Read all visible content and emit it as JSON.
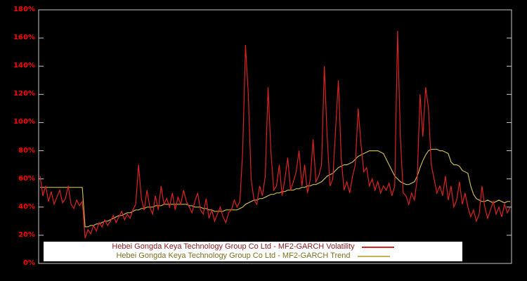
{
  "axis": {
    "label_color": "#ff0000",
    "border_color": "#c8c8c8",
    "background": "#000000"
  },
  "chart_data": {
    "type": "line",
    "title": "",
    "xlabel": "",
    "ylabel": "",
    "ylim": [
      0,
      180
    ],
    "y_ticks": [
      "0%",
      "20%",
      "40%",
      "60%",
      "80%",
      "100%",
      "120%",
      "140%",
      "160%",
      "180%"
    ],
    "grid": false,
    "legend_position": "bottom-center",
    "x_count": 168,
    "series": [
      {
        "name": "Hebei Gongda Keya Technology Group Co Ltd - MF2-GARCH Volatility",
        "color": "#dd2222",
        "legend_text_color": "#8b1a1a",
        "values": [
          62,
          48,
          55,
          44,
          51,
          42,
          47,
          52,
          43,
          46,
          55,
          42,
          39,
          45,
          41,
          44,
          18,
          24,
          21,
          27,
          23,
          29,
          26,
          31,
          27,
          30,
          34,
          29,
          33,
          37,
          31,
          35,
          32,
          38,
          42,
          70,
          46,
          38,
          52,
          40,
          35,
          48,
          38,
          55,
          42,
          46,
          40,
          50,
          38,
          47,
          42,
          52,
          44,
          40,
          36,
          44,
          50,
          38,
          35,
          46,
          32,
          38,
          30,
          35,
          40,
          33,
          29,
          36,
          38,
          45,
          40,
          44,
          80,
          155,
          120,
          60,
          45,
          42,
          55,
          48,
          62,
          125,
          80,
          52,
          55,
          70,
          48,
          60,
          75,
          52,
          58,
          65,
          80,
          55,
          70,
          50,
          60,
          88,
          58,
          62,
          70,
          140,
          90,
          55,
          60,
          95,
          130,
          75,
          52,
          58,
          50,
          62,
          70,
          110,
          85,
          65,
          68,
          55,
          60,
          52,
          58,
          50,
          55,
          52,
          57,
          48,
          55,
          165,
          90,
          50,
          48,
          42,
          50,
          45,
          60,
          120,
          90,
          125,
          110,
          70,
          60,
          50,
          55,
          48,
          62,
          45,
          55,
          40,
          45,
          58,
          42,
          50,
          40,
          33,
          38,
          30,
          35,
          55,
          40,
          32,
          38,
          44,
          35,
          40,
          33,
          42,
          36,
          40
        ]
      },
      {
        "name": "Hebei Gongda Keya Technology Group Co Ltd - MF2-GARCH Trend",
        "color": "#c8b454",
        "legend_text_color": "#79711f",
        "values": [
          54,
          54,
          54,
          54,
          54,
          54,
          54,
          54,
          54,
          54,
          54,
          54,
          54,
          54,
          54,
          54,
          26,
          26,
          27,
          27,
          28,
          28,
          29,
          30,
          30,
          31,
          32,
          33,
          34,
          34,
          35,
          36,
          36,
          37,
          38,
          38,
          39,
          39,
          40,
          40,
          40,
          41,
          41,
          41,
          42,
          42,
          42,
          42,
          42,
          42,
          42,
          42,
          42,
          41,
          41,
          40,
          40,
          40,
          39,
          39,
          38,
          38,
          37,
          37,
          37,
          37,
          38,
          38,
          38,
          38,
          38,
          39,
          40,
          42,
          43,
          44,
          45,
          45,
          46,
          46,
          47,
          48,
          49,
          49,
          50,
          50,
          51,
          51,
          52,
          52,
          52,
          53,
          53,
          54,
          54,
          55,
          55,
          56,
          56,
          57,
          58,
          60,
          62,
          63,
          64,
          66,
          68,
          69,
          70,
          70,
          71,
          72,
          74,
          76,
          77,
          78,
          79,
          80,
          80,
          80,
          80,
          79,
          78,
          74,
          70,
          66,
          62,
          60,
          58,
          57,
          56,
          56,
          57,
          58,
          62,
          68,
          73,
          77,
          80,
          81,
          81,
          81,
          80,
          80,
          79,
          78,
          72,
          70,
          70,
          69,
          66,
          65,
          64,
          55,
          49,
          46,
          45,
          44,
          44,
          45,
          44,
          43,
          44,
          45,
          44,
          43,
          44,
          44
        ]
      }
    ]
  }
}
